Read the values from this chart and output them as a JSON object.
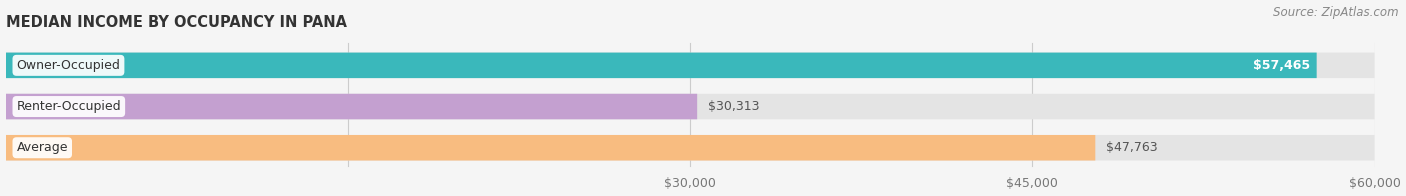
{
  "title": "MEDIAN INCOME BY OCCUPANCY IN PANA",
  "source": "Source: ZipAtlas.com",
  "categories": [
    "Owner-Occupied",
    "Renter-Occupied",
    "Average"
  ],
  "values": [
    57465,
    30313,
    47763
  ],
  "bar_colors": [
    "#3ab8bb",
    "#c4a0d0",
    "#f8bc80"
  ],
  "bar_labels": [
    "$57,465",
    "$30,313",
    "$47,763"
  ],
  "value_inside": [
    true,
    false,
    false
  ],
  "xlim_min": 0,
  "xlim_max": 60000,
  "xticks": [
    15000,
    30000,
    45000,
    60000
  ],
  "xtick_labels": [
    "",
    "$30,000",
    "$45,000",
    "$60,000"
  ],
  "bg_color": "#f5f5f5",
  "bar_bg_color": "#e4e4e4",
  "bar_bg_color2": "#ebebeb",
  "title_fontsize": 10.5,
  "label_fontsize": 9,
  "value_fontsize": 9,
  "tick_fontsize": 9,
  "source_fontsize": 8.5,
  "bar_height": 0.62,
  "bar_gap": 0.38
}
